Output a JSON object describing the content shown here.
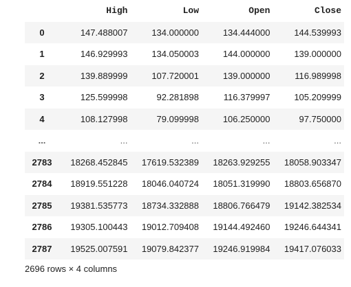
{
  "dataframe": {
    "columns": [
      "High",
      "Low",
      "Open",
      "Close"
    ],
    "rows": [
      {
        "index": "0",
        "values": [
          "147.488007",
          "134.000000",
          "134.444000",
          "144.539993"
        ]
      },
      {
        "index": "1",
        "values": [
          "146.929993",
          "134.050003",
          "144.000000",
          "139.000000"
        ]
      },
      {
        "index": "2",
        "values": [
          "139.889999",
          "107.720001",
          "139.000000",
          "116.989998"
        ]
      },
      {
        "index": "3",
        "values": [
          "125.599998",
          "92.281898",
          "116.379997",
          "105.209999"
        ]
      },
      {
        "index": "4",
        "values": [
          "108.127998",
          "79.099998",
          "106.250000",
          "97.750000"
        ]
      },
      {
        "index": "...",
        "values": [
          "...",
          "...",
          "...",
          "..."
        ]
      },
      {
        "index": "2783",
        "values": [
          "18268.452845",
          "17619.532389",
          "18263.929255",
          "18058.903347"
        ]
      },
      {
        "index": "2784",
        "values": [
          "18919.551228",
          "18046.040724",
          "18051.319990",
          "18803.656870"
        ]
      },
      {
        "index": "2785",
        "values": [
          "19381.535773",
          "18734.332888",
          "18806.766479",
          "19142.382534"
        ]
      },
      {
        "index": "2786",
        "values": [
          "19305.100443",
          "19012.709408",
          "19144.492460",
          "19246.644341"
        ]
      },
      {
        "index": "2787",
        "values": [
          "19525.007591",
          "19079.842377",
          "19246.919984",
          "19417.076033"
        ]
      }
    ],
    "shape_text": "2696 rows × 4 columns"
  }
}
